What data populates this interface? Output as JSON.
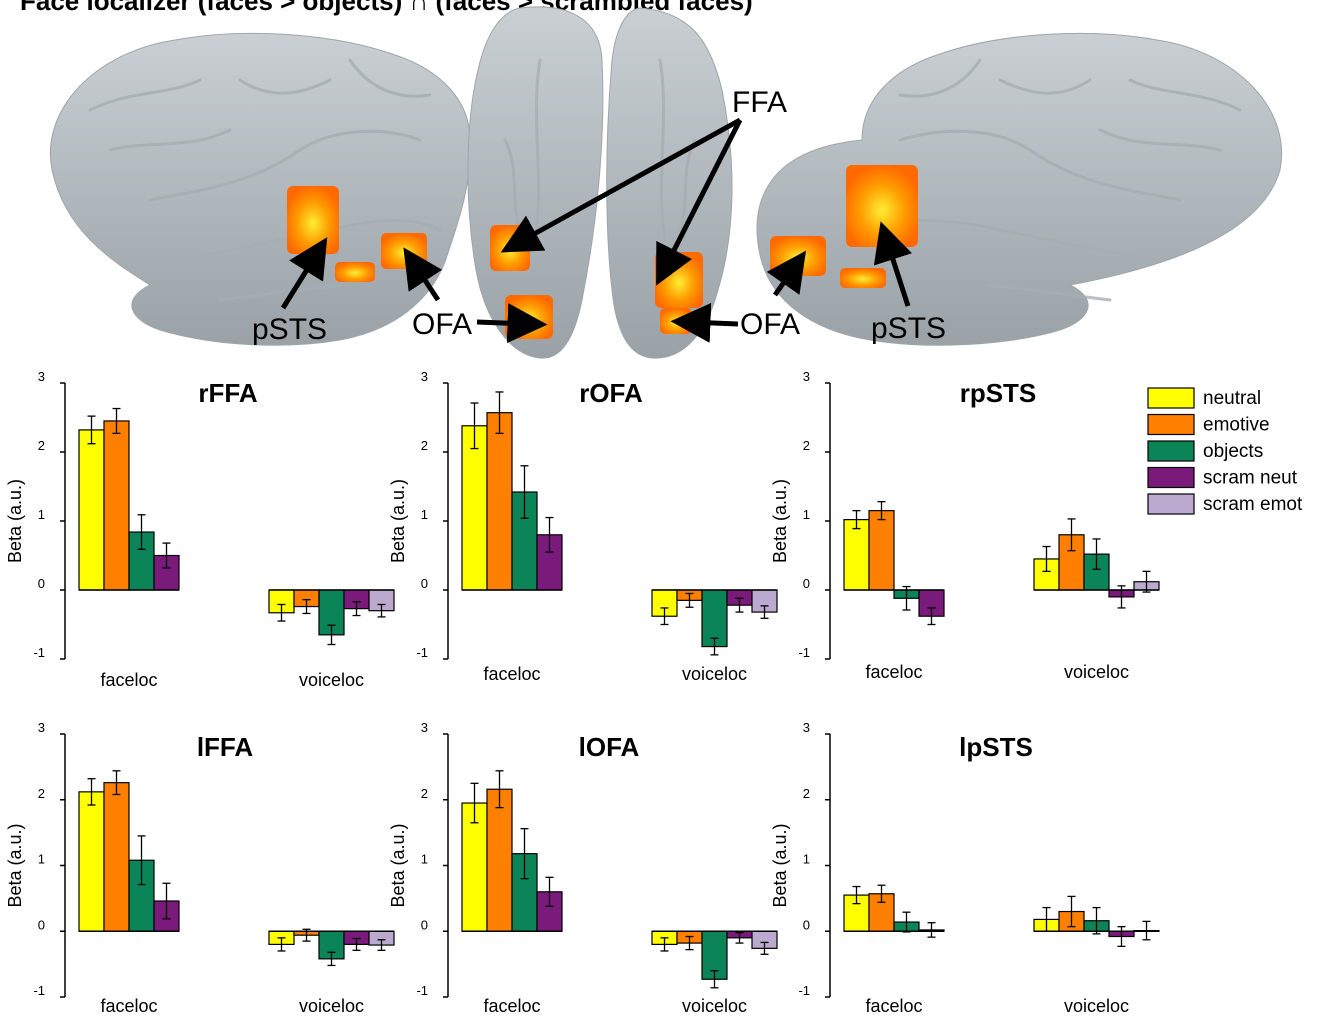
{
  "figure_title": "Face localizer (faces > objects) ∩ (faces > scrambled faces)",
  "brain_labels": {
    "ffa": "FFA",
    "pSTS_left_view": "pSTS",
    "pSTS_right_view": "pSTS",
    "ofa_left": "OFA",
    "ofa_right": "OFA"
  },
  "colors": {
    "neutral": "#ffff00",
    "emotive": "#ff8000",
    "objects": "#0b8457",
    "scram_neut": "#7a1a7a",
    "scram_emot": "#bca9cf",
    "brain": "#bcc3c7",
    "activation": "#ff8c00"
  },
  "legend": [
    {
      "label": "neutral",
      "color": "#ffff00"
    },
    {
      "label": "emotive",
      "color": "#ff8000"
    },
    {
      "label": "objects",
      "color": "#0b8457"
    },
    {
      "label": "scram neut",
      "color": "#7a1a7a"
    },
    {
      "label": "scram emot",
      "color": "#bca9cf"
    }
  ],
  "chart_data": [
    {
      "type": "bar",
      "title": "rFFA",
      "ylabel": "Beta (a.u.)",
      "ylim": [
        -1,
        3
      ],
      "yticks": [
        "-1",
        "0",
        "1",
        "2",
        "3"
      ],
      "categories": [
        "faceloc",
        "voiceloc"
      ],
      "series": [
        {
          "name": "neutral",
          "values": [
            2.32,
            -0.33
          ],
          "errors": [
            0.2,
            0.12
          ]
        },
        {
          "name": "emotive",
          "values": [
            2.45,
            -0.24
          ],
          "errors": [
            0.18,
            0.1
          ]
        },
        {
          "name": "objects",
          "values": [
            0.84,
            -0.65
          ],
          "errors": [
            0.25,
            0.14
          ]
        },
        {
          "name": "scram neut",
          "values": [
            0.5,
            -0.27
          ],
          "errors": [
            0.18,
            0.1
          ]
        },
        {
          "name": "scram emot",
          "values": [
            null,
            -0.3
          ],
          "errors": [
            null,
            0.09
          ]
        }
      ]
    },
    {
      "type": "bar",
      "title": "rOFA",
      "ylabel": "Beta (a.u.)",
      "ylim": [
        -1,
        3
      ],
      "yticks": [
        "-1",
        "0",
        "1",
        "2",
        "3"
      ],
      "categories": [
        "faceloc",
        "voiceloc"
      ],
      "series": [
        {
          "name": "neutral",
          "values": [
            2.38,
            -0.38
          ],
          "errors": [
            0.33,
            0.12
          ]
        },
        {
          "name": "emotive",
          "values": [
            2.57,
            -0.15
          ],
          "errors": [
            0.3,
            0.1
          ]
        },
        {
          "name": "objects",
          "values": [
            1.42,
            -0.82
          ],
          "errors": [
            0.38,
            0.12
          ]
        },
        {
          "name": "scram neut",
          "values": [
            0.8,
            -0.22
          ],
          "errors": [
            0.25,
            0.1
          ]
        },
        {
          "name": "scram emot",
          "values": [
            null,
            -0.32
          ],
          "errors": [
            null,
            0.09
          ]
        }
      ]
    },
    {
      "type": "bar",
      "title": "rpSTS",
      "ylabel": "Beta (a.u.)",
      "ylim": [
        -1,
        3
      ],
      "yticks": [
        "-1",
        "0",
        "1",
        "2",
        "3"
      ],
      "categories": [
        "faceloc",
        "voiceloc"
      ],
      "series": [
        {
          "name": "neutral",
          "values": [
            1.02,
            0.45
          ],
          "errors": [
            0.13,
            0.18
          ]
        },
        {
          "name": "emotive",
          "values": [
            1.15,
            0.8
          ],
          "errors": [
            0.13,
            0.23
          ]
        },
        {
          "name": "objects",
          "values": [
            -0.12,
            0.52
          ],
          "errors": [
            0.17,
            0.22
          ]
        },
        {
          "name": "scram neut",
          "values": [
            -0.38,
            -0.1
          ],
          "errors": [
            0.12,
            0.16
          ]
        },
        {
          "name": "scram emot",
          "values": [
            null,
            0.12
          ],
          "errors": [
            null,
            0.15
          ]
        }
      ]
    },
    {
      "type": "bar",
      "title": "lFFA",
      "ylabel": "Beta (a.u.)",
      "ylim": [
        -1,
        3
      ],
      "yticks": [
        "-1",
        "0",
        "1",
        "2",
        "3"
      ],
      "categories": [
        "faceloc",
        "voiceloc"
      ],
      "series": [
        {
          "name": "neutral",
          "values": [
            2.12,
            -0.2
          ],
          "errors": [
            0.2,
            0.1
          ]
        },
        {
          "name": "emotive",
          "values": [
            2.26,
            -0.06
          ],
          "errors": [
            0.18,
            0.09
          ]
        },
        {
          "name": "objects",
          "values": [
            1.08,
            -0.42
          ],
          "errors": [
            0.37,
            0.1
          ]
        },
        {
          "name": "scram neut",
          "values": [
            0.46,
            -0.2
          ],
          "errors": [
            0.27,
            0.09
          ]
        },
        {
          "name": "scram emot",
          "values": [
            null,
            -0.21
          ],
          "errors": [
            null,
            0.08
          ]
        }
      ]
    },
    {
      "type": "bar",
      "title": "lOFA",
      "ylabel": "Beta (a.u.)",
      "ylim": [
        -1,
        3
      ],
      "yticks": [
        "-1",
        "0",
        "1",
        "2",
        "3"
      ],
      "categories": [
        "faceloc",
        "voiceloc"
      ],
      "series": [
        {
          "name": "neutral",
          "values": [
            1.95,
            -0.2
          ],
          "errors": [
            0.3,
            0.1
          ]
        },
        {
          "name": "emotive",
          "values": [
            2.16,
            -0.18
          ],
          "errors": [
            0.28,
            0.1
          ]
        },
        {
          "name": "objects",
          "values": [
            1.18,
            -0.73
          ],
          "errors": [
            0.38,
            0.13
          ]
        },
        {
          "name": "scram neut",
          "values": [
            0.6,
            -0.1
          ],
          "errors": [
            0.22,
            0.08
          ]
        },
        {
          "name": "scram emot",
          "values": [
            null,
            -0.26
          ],
          "errors": [
            null,
            0.09
          ]
        }
      ]
    },
    {
      "type": "bar",
      "title": "lpSTS",
      "ylabel": "Beta (a.u.)",
      "ylim": [
        -1,
        3
      ],
      "yticks": [
        "-1",
        "0",
        "1",
        "2",
        "3"
      ],
      "categories": [
        "faceloc",
        "voiceloc"
      ],
      "series": [
        {
          "name": "neutral",
          "values": [
            0.55,
            0.18
          ],
          "errors": [
            0.13,
            0.18
          ]
        },
        {
          "name": "emotive",
          "values": [
            0.57,
            0.3
          ],
          "errors": [
            0.13,
            0.23
          ]
        },
        {
          "name": "objects",
          "values": [
            0.14,
            0.16
          ],
          "errors": [
            0.15,
            0.2
          ]
        },
        {
          "name": "scram neut",
          "values": [
            0.02,
            -0.08
          ],
          "errors": [
            0.11,
            0.15
          ]
        },
        {
          "name": "scram emot",
          "values": [
            null,
            0.01
          ],
          "errors": [
            null,
            0.14
          ]
        }
      ]
    }
  ]
}
